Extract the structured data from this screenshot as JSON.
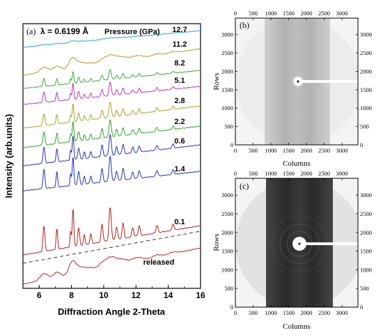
{
  "figure": {
    "panel_a": {
      "label": "(a)",
      "wavelength": "λ = 0.6199 Å",
      "pressure_header": "Pressure (GPa)",
      "ylabel": "Intensity (arb.units)",
      "xlabel": "Diffraction Angle 2-Theta",
      "ticks": [
        "6",
        "8",
        "10",
        "12",
        "14",
        "16"
      ]
    },
    "panel_b": {
      "label": "(b)",
      "xlabel": "Columns",
      "ylabel": "Rows",
      "ticks": [
        "0",
        "500",
        "1000",
        "1500",
        "2000",
        "2500",
        "3000"
      ]
    },
    "panel_c": {
      "label": "(c)",
      "xlabel": "Columns",
      "ylabel": "Rows",
      "ticks": [
        "0",
        "500",
        "1000",
        "1500",
        "2000",
        "2500",
        "3000"
      ]
    }
  },
  "chart_data": [
    {
      "type": "line",
      "xlim": [
        5,
        16
      ],
      "x_ticks": [
        6,
        8,
        10,
        12,
        14,
        16
      ],
      "peaks_2theta": [
        6.3,
        7.1,
        7.95,
        8.1,
        8.45,
        8.8,
        9.2,
        9.9,
        10.4,
        10.8,
        11.2,
        11.8,
        12.2,
        13.3,
        14.3
      ],
      "series": [
        {
          "name": "12.7",
          "color": "#28a8b5",
          "peak_scale": 0.06
        },
        {
          "name": "11.2",
          "color": "#a89b1e",
          "peak_scale": 0.35
        },
        {
          "name": "8.2",
          "color": "#3aa63a",
          "peak_scale": 0.55
        },
        {
          "name": "5.1",
          "color": "#b833b8",
          "peak_scale": 0.75
        },
        {
          "name": "2.8",
          "color": "#a8a020",
          "peak_scale": 0.85
        },
        {
          "name": "2.2",
          "color": "#2aa02a",
          "peak_scale": 0.95
        },
        {
          "name": "0.6",
          "color": "#2230b0",
          "peak_scale": 1.15
        },
        {
          "name": "1.4",
          "color": "#2230b0",
          "peak_scale": 1.35
        },
        {
          "name": "0.1",
          "color": "#b02020",
          "peak_scale": 1.8
        },
        {
          "name": "released",
          "color": "#b02020",
          "peak_scale": 0.45
        }
      ]
    },
    {
      "type": "heatmap",
      "xlim": [
        0,
        3450
      ],
      "ylim": [
        0,
        3450
      ],
      "x_ticks": [
        0,
        500,
        1000,
        1500,
        2000,
        2500,
        3000
      ],
      "y_ticks": [
        0,
        500,
        1000,
        1500,
        2000,
        2500,
        3000
      ]
    },
    {
      "type": "heatmap",
      "xlim": [
        0,
        3450
      ],
      "ylim": [
        0,
        3450
      ],
      "x_ticks": [
        0,
        500,
        1000,
        1500,
        2000,
        2500,
        3000
      ],
      "y_ticks": [
        0,
        500,
        1000,
        1500,
        2000,
        2500,
        3000
      ]
    }
  ]
}
